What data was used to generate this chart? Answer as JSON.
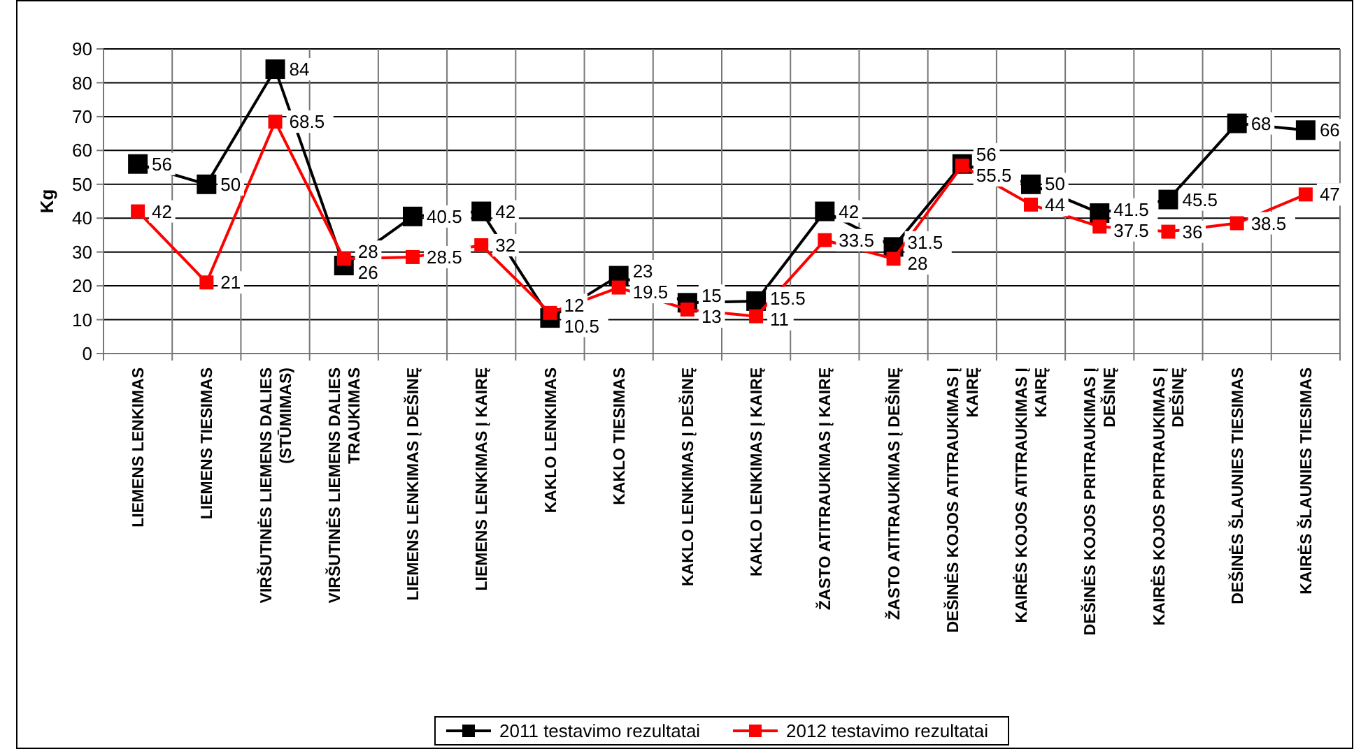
{
  "chart_data": {
    "type": "line",
    "ylabel": "Kg",
    "categories": [
      "LIEMENS LENKIMAS",
      "LIEMENS TIESIMAS",
      "VIRŠUTINĖS LIEMENS DALIES (STŪMIMAS)",
      "VIRŠUTINĖS LIEMENS DALIES TRAUKIMAS",
      "LIEMENS LENKIMAS Į DEŠINĘ",
      "LIEMENS LENKIMAS Į KAIRĘ",
      "KAKLO LENKIMAS",
      "KAKLO TIESIMAS",
      "KAKLO LENKIMAS Į DEŠINĘ",
      "KAKLO LENKIMAS Į KAIRĘ",
      "ŽASTO ATITRAUKIMAS Į KAIRĘ",
      "ŽASTO ATITRAUKIMAS Į DEŠINĘ",
      "DEŠINĖS KOJOS ATITRAUKIMAS Į KAIRĘ",
      "KAIRĖS KOJOS ATITRAUKIMAS Į KAIRĘ",
      "DEŠINĖS KOJOS PRITRAUKIMAS Į DEŠINĘ",
      "KAIRĖS KOJOS PRITRAUKIMAS Į DEŠINĘ",
      "DEŠINĖS ŠLAUNIES TIESIMAS",
      "KAIRĖS ŠLAUNIES TIESIMAS"
    ],
    "series": [
      {
        "name": "2011 testavimo rezultatai",
        "color": "#000000",
        "values": [
          56,
          50,
          84,
          26,
          40.5,
          42,
          10.5,
          23,
          15,
          15.5,
          42,
          31.5,
          56,
          50,
          41.5,
          45.5,
          68,
          66
        ]
      },
      {
        "name": "2012 testavimo rezultatai",
        "color": "#ff0000",
        "values": [
          42,
          21,
          68.5,
          28,
          28.5,
          32,
          12,
          19.5,
          13,
          11,
          33.5,
          28,
          55.5,
          44,
          37.5,
          36,
          38.5,
          47
        ]
      }
    ],
    "ylim": [
      0,
      90
    ],
    "yticks": [
      0,
      10,
      20,
      30,
      40,
      50,
      60,
      70,
      80,
      90
    ],
    "grid": true,
    "legend": "bottom",
    "marker": "square",
    "line_style": "solid",
    "data_labels": true
  }
}
